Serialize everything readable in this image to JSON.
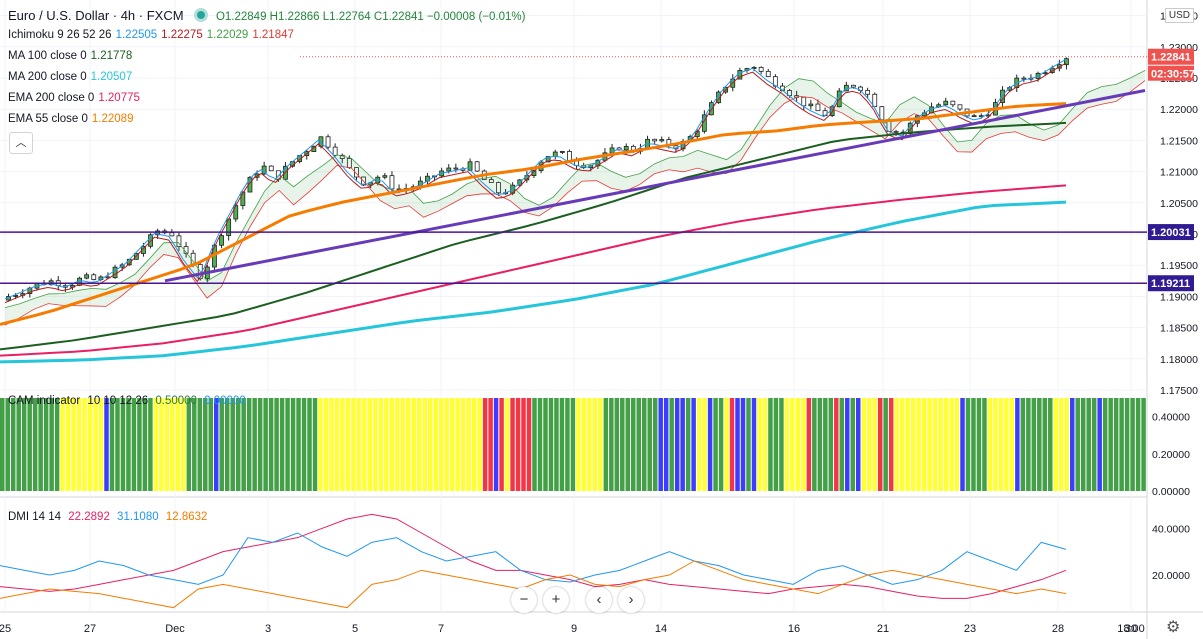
{
  "header": {
    "symbol": "Euro / U.S. Dollar · 4h · FXCM",
    "ohlc": "O1.22849  H1.22866  L1.22764  C1.22841  −0.00008 (−0.01%)",
    "currency": "USD"
  },
  "indicators": [
    {
      "label": "Ichimoku 9 26 52 26",
      "values": [
        [
          "1.22505",
          "#2196f3"
        ],
        [
          "1.22275",
          "#b71c1c"
        ],
        [
          "1.22029",
          "#43a047"
        ],
        [
          "1.21847",
          "#e53935"
        ]
      ]
    },
    {
      "label": "MA 100 close 0",
      "values": [
        [
          "1.21778",
          "#1b5e20"
        ]
      ]
    },
    {
      "label": "MA 200 close 0",
      "values": [
        [
          "1.20507",
          "#26c6da"
        ]
      ]
    },
    {
      "label": "EMA 200 close 0",
      "values": [
        [
          "1.20775",
          "#e91e63"
        ]
      ]
    },
    {
      "label": "EMA 55 close 0",
      "values": [
        [
          "1.22089",
          "#f57c00"
        ]
      ]
    }
  ],
  "collapse_icon": "chevron-up-icon",
  "price_axis": {
    "ticks": [
      "1.23500",
      "1.23000",
      "1.22500",
      "1.22000",
      "1.21500",
      "1.21000",
      "1.20500",
      "1.20000",
      "1.19500",
      "1.19000",
      "1.18500",
      "1.18000",
      "1.17500"
    ],
    "last_price": "1.22841",
    "countdown": "02:30:57",
    "levels": [
      "1.20031",
      "1.19211"
    ]
  },
  "x_axis": {
    "ticks": [
      "25",
      "27",
      "Dec",
      "3",
      "5",
      "7",
      "9",
      "14",
      "16",
      "21",
      "23",
      "28",
      "30",
      "18:00"
    ]
  },
  "cam": {
    "label": "CAM indicator",
    "params": "10 10 12 26",
    "v1": "0.50000",
    "v2": "0.00000",
    "ticks": [
      "0.40000",
      "0.20000",
      "0.00000"
    ],
    "colors": {
      "green": "#43a047",
      "yellow": "#ffff33",
      "blue": "#3d3dff",
      "red": "#f23645"
    }
  },
  "dmi": {
    "label": "DMI 14 14",
    "plus_di": "22.2892",
    "minus_di": "31.1080",
    "adx": "12.8632",
    "ticks": [
      "40.0000",
      "20.0000"
    ]
  },
  "nav": {
    "zoom_out": "−",
    "zoom_in": "+",
    "back": "‹",
    "forward": "›"
  },
  "settings_icon": "gear-icon",
  "chart_data": {
    "type": "candlestick",
    "title": "Euro / U.S. Dollar · 4h · FXCM",
    "ylim": [
      1.175,
      1.2375
    ],
    "hlines": [
      1.20031,
      1.19211
    ],
    "close_anchors": [
      1.19,
      1.191,
      1.192,
      1.1925,
      1.1918,
      1.193,
      1.1925,
      1.194,
      1.1955,
      1.198,
      1.2005,
      1.2,
      1.196,
      1.193,
      1.199,
      1.2035,
      1.208,
      1.211,
      1.209,
      1.2115,
      1.2135,
      1.2155,
      1.213,
      1.21,
      1.208,
      1.2095,
      1.207,
      1.2075,
      1.2085,
      1.21,
      1.2105,
      1.211,
      1.2085,
      1.2065,
      1.2075,
      1.21,
      1.2125,
      1.213,
      1.2115,
      1.211,
      1.2125,
      1.214,
      1.2135,
      1.215,
      1.2145,
      1.214,
      1.216,
      1.22,
      1.2235,
      1.226,
      1.227,
      1.225,
      1.2235,
      1.2215,
      1.22,
      1.219,
      1.2235,
      1.224,
      1.2215,
      1.217,
      1.216,
      1.219,
      1.2205,
      1.221,
      1.2195,
      1.2185,
      1.22,
      1.2235,
      1.225,
      1.2255,
      1.227,
      1.2284
    ],
    "ema55_anchors": [
      1.1855,
      1.1875,
      1.19,
      1.1925,
      1.195,
      1.199,
      1.203,
      1.205,
      1.2065,
      1.208,
      1.2095,
      1.2105,
      1.212,
      1.2132,
      1.2145,
      1.216,
      1.2165,
      1.2175,
      1.218,
      1.2185,
      1.2195,
      1.2205,
      1.2209
    ],
    "ma100_anchors": [
      1.1815,
      1.183,
      1.185,
      1.187,
      1.1905,
      1.1945,
      1.1985,
      1.2015,
      1.205,
      1.209,
      1.212,
      1.215,
      1.2163,
      1.2172,
      1.2178
    ],
    "ema200_anchors": [
      1.1805,
      1.1812,
      1.1825,
      1.1845,
      1.1875,
      1.1905,
      1.1935,
      1.1965,
      1.1995,
      1.202,
      1.204,
      1.2055,
      1.2068,
      1.2078
    ],
    "ma200_anchors": [
      1.1795,
      1.1798,
      1.1805,
      1.182,
      1.184,
      1.186,
      1.1875,
      1.1895,
      1.192,
      1.1955,
      1.199,
      1.202,
      1.2045,
      1.2051
    ],
    "cam_blocks": [
      [
        "green",
        11
      ],
      [
        "yellow",
        8
      ],
      [
        "blue",
        1
      ],
      [
        "green",
        8
      ],
      [
        "yellow",
        6
      ],
      [
        "green",
        5
      ],
      [
        "blue",
        1
      ],
      [
        "green",
        18
      ],
      [
        "yellow",
        30
      ],
      [
        "red",
        2
      ],
      [
        "blue",
        1
      ],
      [
        "red",
        1
      ],
      [
        "yellow",
        1
      ],
      [
        "red",
        4
      ],
      [
        "green",
        8
      ],
      [
        "yellow",
        5
      ],
      [
        "green",
        10
      ],
      [
        "blue",
        2
      ],
      [
        "green",
        1
      ],
      [
        "blue",
        2
      ],
      [
        "green",
        1
      ],
      [
        "blue",
        1
      ],
      [
        "yellow",
        2
      ],
      [
        "blue",
        1
      ],
      [
        "green",
        2
      ],
      [
        "yellow",
        1
      ],
      [
        "red",
        1
      ],
      [
        "blue",
        2
      ],
      [
        "green",
        1
      ],
      [
        "blue",
        1
      ],
      [
        "yellow",
        2
      ],
      [
        "green",
        3
      ],
      [
        "yellow",
        4
      ],
      [
        "red",
        1
      ],
      [
        "green",
        4
      ],
      [
        "red",
        1
      ],
      [
        "green",
        1
      ],
      [
        "blue",
        1
      ],
      [
        "green",
        1
      ],
      [
        "blue",
        1
      ],
      [
        "yellow",
        3
      ],
      [
        "red",
        1
      ],
      [
        "green",
        1
      ],
      [
        "red",
        1
      ],
      [
        "yellow",
        12
      ],
      [
        "blue",
        1
      ],
      [
        "green",
        4
      ],
      [
        "yellow",
        5
      ],
      [
        "blue",
        1
      ],
      [
        "green",
        6
      ],
      [
        "yellow",
        3
      ],
      [
        "blue",
        1
      ],
      [
        "green",
        4
      ],
      [
        "blue",
        1
      ],
      [
        "green",
        8
      ]
    ],
    "dmi_plus_anchors": [
      15,
      14,
      13,
      14,
      16,
      18,
      20,
      22,
      26,
      30,
      32,
      34,
      36,
      40,
      44,
      46,
      44,
      38,
      32,
      26,
      22,
      22,
      20,
      18,
      15,
      16,
      18,
      16,
      15,
      14,
      13,
      12,
      14,
      15,
      16,
      15,
      13,
      11,
      10,
      10,
      12,
      15,
      18,
      22
    ],
    "dmi_minus_anchors": [
      24,
      22,
      20,
      22,
      26,
      24,
      20,
      18,
      16,
      20,
      36,
      34,
      38,
      32,
      28,
      34,
      36,
      30,
      26,
      28,
      30,
      22,
      18,
      17,
      20,
      22,
      26,
      30,
      26,
      24,
      20,
      18,
      16,
      22,
      24,
      20,
      16,
      18,
      22,
      30,
      26,
      22,
      34,
      31
    ],
    "adx_anchors": [
      10,
      12,
      14,
      13,
      12,
      10,
      8,
      6,
      14,
      16,
      14,
      12,
      10,
      8,
      6,
      16,
      18,
      22,
      20,
      18,
      16,
      14,
      18,
      20,
      16,
      15,
      18,
      20,
      26,
      22,
      18,
      16,
      14,
      12,
      16,
      20,
      22,
      20,
      18,
      16,
      14,
      12,
      14,
      12
    ]
  }
}
